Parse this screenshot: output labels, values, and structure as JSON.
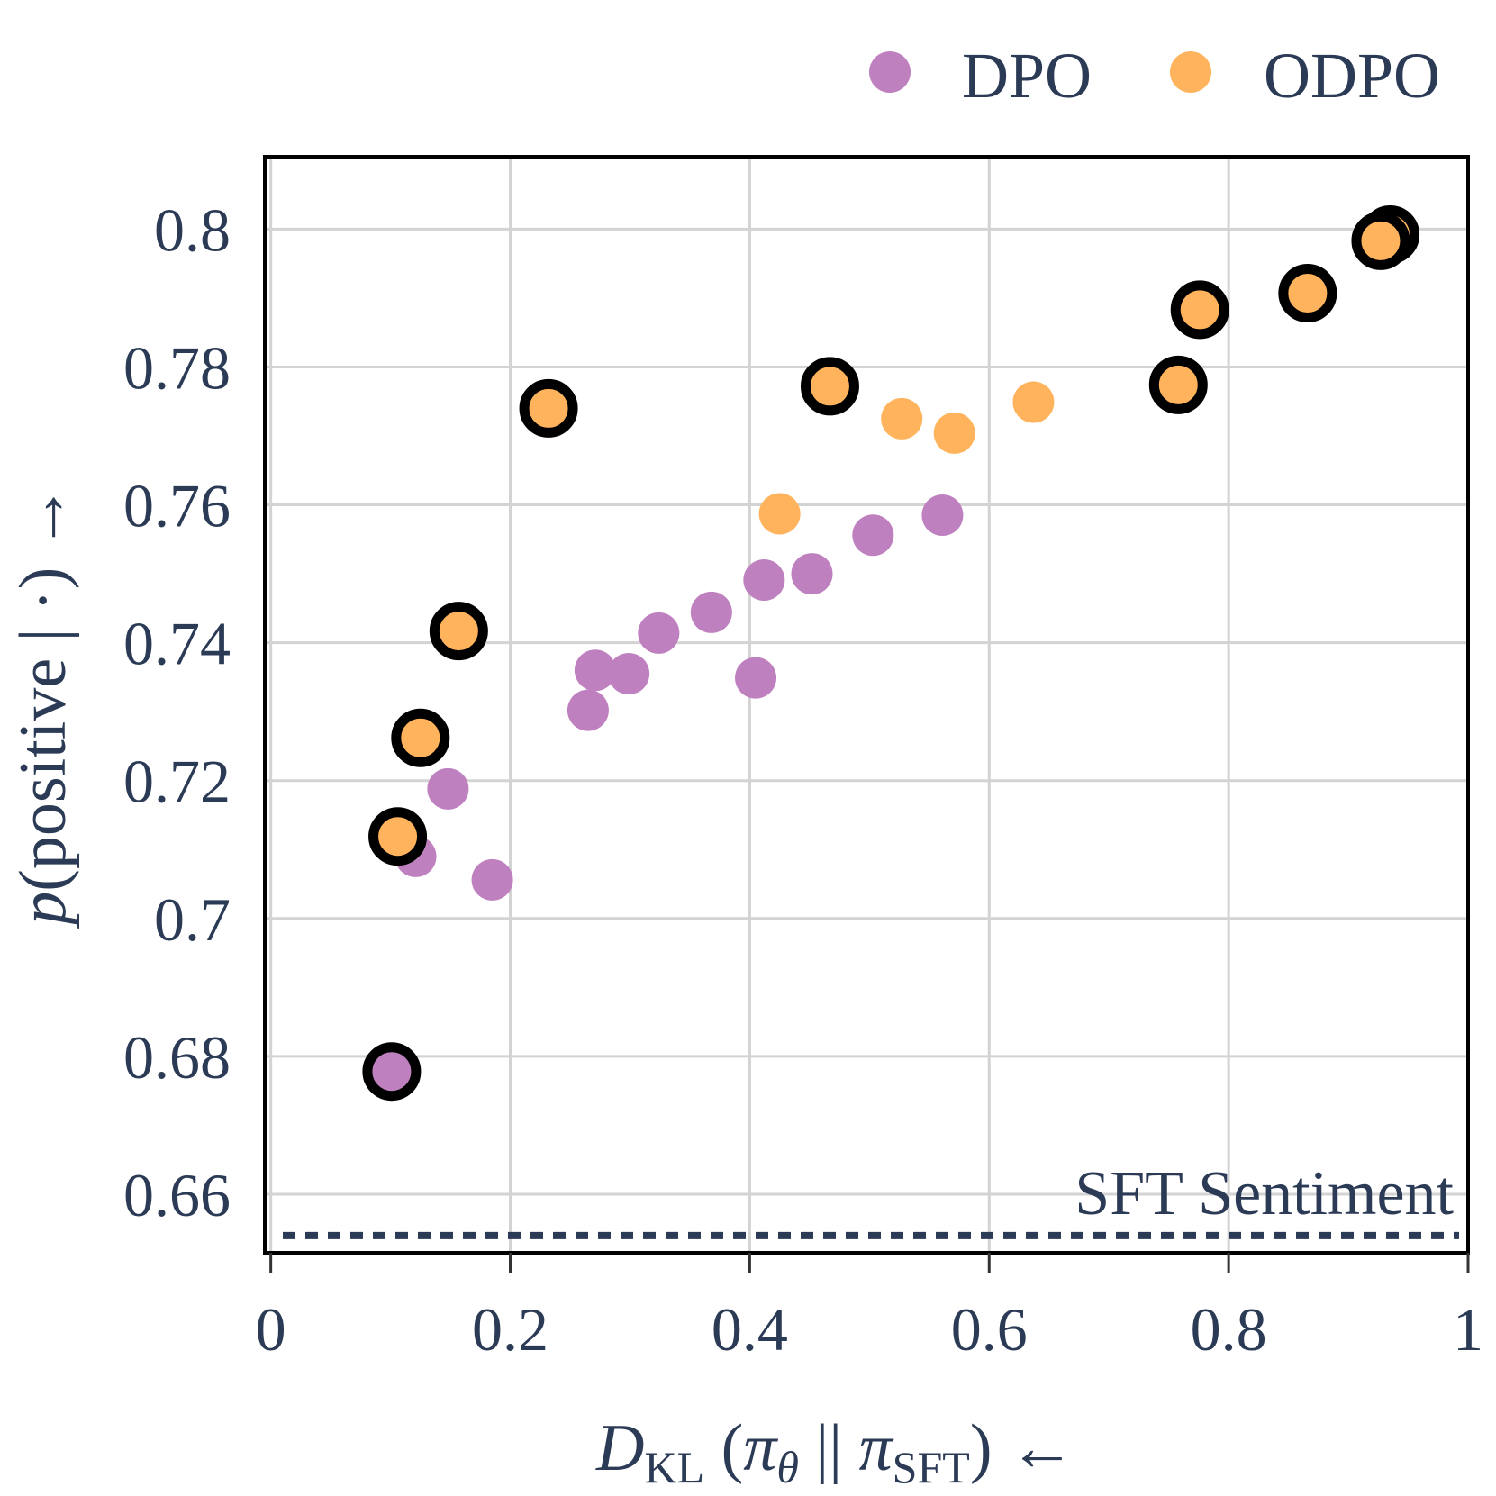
{
  "chart_data": {
    "type": "scatter",
    "title": "",
    "xlabel": "D_KL(π_θ || π_SFT) ←",
    "ylabel": "p(positive | ·) →",
    "xlim": [
      -0.005,
      1.0
    ],
    "ylim": [
      0.6515,
      0.8105
    ],
    "grid": true,
    "legend_position": "top-right",
    "x_ticks": [
      0,
      0.2,
      0.4,
      0.6,
      0.8,
      1.0
    ],
    "x_tick_labels": [
      "0",
      "0.2",
      "0.4",
      "0.6",
      "0.8",
      "1"
    ],
    "y_ticks": [
      0.66,
      0.68,
      0.7,
      0.72,
      0.74,
      0.76,
      0.78,
      0.8
    ],
    "y_tick_labels": [
      "0.66",
      "0.68",
      "0.7",
      "0.72",
      "0.74",
      "0.76",
      "0.78",
      "0.8"
    ],
    "series": [
      {
        "name": "DPO",
        "color": "#bf80bf",
        "points": [
          {
            "x": 0.101,
            "y": 0.6778,
            "highlight": true
          },
          {
            "x": 0.121,
            "y": 0.709
          },
          {
            "x": 0.148,
            "y": 0.7188
          },
          {
            "x": 0.185,
            "y": 0.7056
          },
          {
            "x": 0.265,
            "y": 0.7302
          },
          {
            "x": 0.271,
            "y": 0.736
          },
          {
            "x": 0.299,
            "y": 0.7355
          },
          {
            "x": 0.324,
            "y": 0.7414
          },
          {
            "x": 0.368,
            "y": 0.7444
          },
          {
            "x": 0.405,
            "y": 0.7349
          },
          {
            "x": 0.412,
            "y": 0.7491
          },
          {
            "x": 0.452,
            "y": 0.75
          },
          {
            "x": 0.503,
            "y": 0.7556
          },
          {
            "x": 0.561,
            "y": 0.7585
          }
        ]
      },
      {
        "name": "ODPO",
        "color": "#ffb35c",
        "points": [
          {
            "x": 0.106,
            "y": 0.7119,
            "highlight": true
          },
          {
            "x": 0.125,
            "y": 0.7262,
            "highlight": true
          },
          {
            "x": 0.157,
            "y": 0.7417,
            "highlight": true
          },
          {
            "x": 0.232,
            "y": 0.774,
            "highlight": true
          },
          {
            "x": 0.425,
            "y": 0.7587
          },
          {
            "x": 0.467,
            "y": 0.7772,
            "highlight": true
          },
          {
            "x": 0.527,
            "y": 0.7725
          },
          {
            "x": 0.571,
            "y": 0.7704
          },
          {
            "x": 0.637,
            "y": 0.7749
          },
          {
            "x": 0.758,
            "y": 0.7774,
            "highlight": true
          },
          {
            "x": 0.776,
            "y": 0.7883,
            "highlight": true
          },
          {
            "x": 0.866,
            "y": 0.7907,
            "highlight": true
          },
          {
            "x": 0.935,
            "y": 0.7992,
            "highlight": true
          },
          {
            "x": 0.927,
            "y": 0.7983,
            "highlight": true
          }
        ]
      }
    ],
    "reference_line": {
      "label": "SFT Sentiment",
      "y": 0.654,
      "style": "dotted",
      "color": "#2b3a55"
    },
    "colors": {
      "axis_text": "#2b3a55",
      "frame": "#000000",
      "grid": "#d3d3d3",
      "highlight_ring": "#000000"
    }
  }
}
